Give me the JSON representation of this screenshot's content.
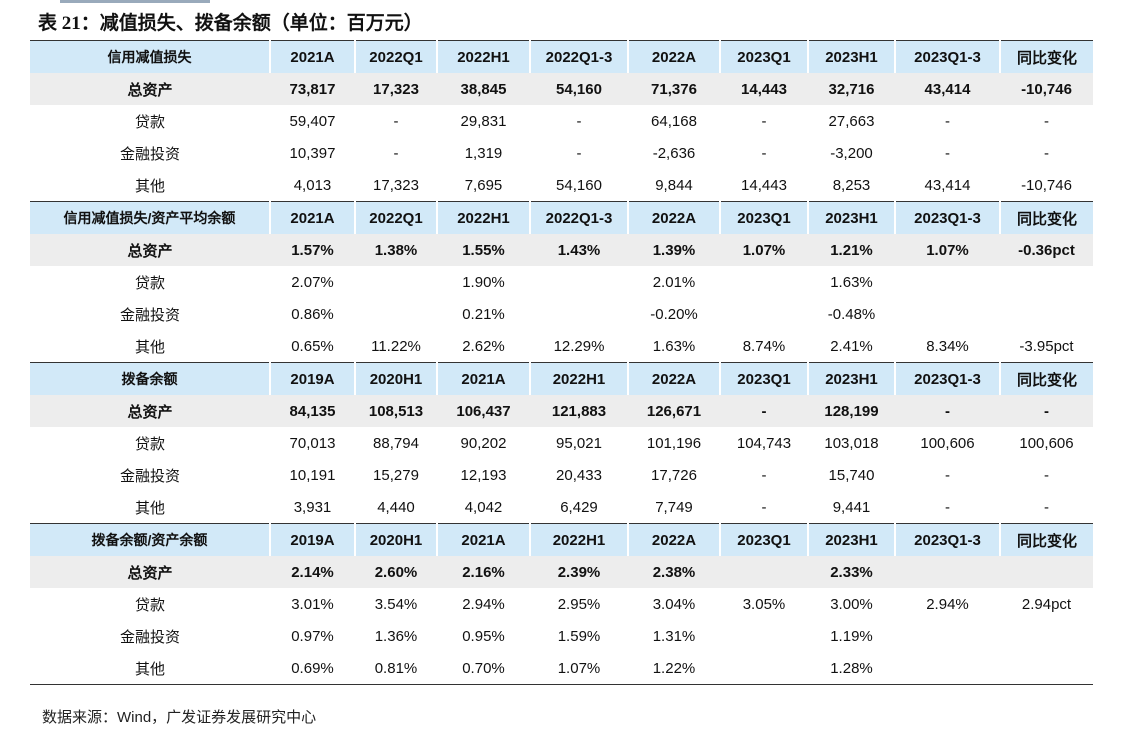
{
  "title": "表 21：减值损失、拨备余额（单位：百万元）",
  "sections": [
    {
      "header": [
        "信用减值损失",
        "2021A",
        "2022Q1",
        "2022H1",
        "2022Q1-3",
        "2022A",
        "2023Q1",
        "2023H1",
        "2023Q1-3",
        "同比变化"
      ],
      "rows": [
        [
          "总资产",
          "73,817",
          "17,323",
          "38,845",
          "54,160",
          "71,376",
          "14,443",
          "32,716",
          "43,414",
          "-10,746"
        ],
        [
          "贷款",
          "59,407",
          "-",
          "29,831",
          "-",
          "64,168",
          "-",
          "27,663",
          "-",
          "-"
        ],
        [
          "金融投资",
          "10,397",
          "-",
          "1,319",
          "-",
          "-2,636",
          "-",
          "-3,200",
          "-",
          "-"
        ],
        [
          "其他",
          "4,013",
          "17,323",
          "7,695",
          "54,160",
          "9,844",
          "14,443",
          "8,253",
          "43,414",
          "-10,746"
        ]
      ]
    },
    {
      "header": [
        "信用减值损失/资产平均余额",
        "2021A",
        "2022Q1",
        "2022H1",
        "2022Q1-3",
        "2022A",
        "2023Q1",
        "2023H1",
        "2023Q1-3",
        "同比变化"
      ],
      "rows": [
        [
          "总资产",
          "1.57%",
          "1.38%",
          "1.55%",
          "1.43%",
          "1.39%",
          "1.07%",
          "1.21%",
          "1.07%",
          "-0.36pct"
        ],
        [
          "贷款",
          "2.07%",
          null,
          "1.90%",
          null,
          "2.01%",
          null,
          "1.63%",
          null,
          null
        ],
        [
          "金融投资",
          "0.86%",
          null,
          "0.21%",
          null,
          "-0.20%",
          null,
          "-0.48%",
          null,
          null
        ],
        [
          "其他",
          "0.65%",
          "11.22%",
          "2.62%",
          "12.29%",
          "1.63%",
          "8.74%",
          "2.41%",
          "8.34%",
          "-3.95pct"
        ]
      ]
    },
    {
      "header": [
        "拨备余额",
        "2019A",
        "2020H1",
        "2021A",
        "2022H1",
        "2022A",
        "2023Q1",
        "2023H1",
        "2023Q1-3",
        "同比变化"
      ],
      "rows": [
        [
          "总资产",
          "84,135",
          "108,513",
          "106,437",
          "121,883",
          "126,671",
          "-",
          "128,199",
          "-",
          "-"
        ],
        [
          "贷款",
          "70,013",
          "88,794",
          "90,202",
          "95,021",
          "101,196",
          "104,743",
          "103,018",
          "100,606",
          "100,606"
        ],
        [
          "金融投资",
          "10,191",
          "15,279",
          "12,193",
          "20,433",
          "17,726",
          "-",
          "15,740",
          "-",
          "-"
        ],
        [
          "其他",
          "3,931",
          "4,440",
          "4,042",
          "6,429",
          "7,749",
          "-",
          "9,441",
          "-",
          "-"
        ]
      ]
    },
    {
      "header": [
        "拨备余额/资产余额",
        "2019A",
        "2020H1",
        "2021A",
        "2022H1",
        "2022A",
        "2023Q1",
        "2023H1",
        "2023Q1-3",
        "同比变化"
      ],
      "rows": [
        [
          "总资产",
          "2.14%",
          "2.60%",
          "2.16%",
          "2.39%",
          "2.38%",
          null,
          "2.33%",
          null,
          null
        ],
        [
          "贷款",
          "3.01%",
          "3.54%",
          "2.94%",
          "2.95%",
          "3.04%",
          "3.05%",
          "3.00%",
          "2.94%",
          "2.94pct"
        ],
        [
          "金融投资",
          "0.97%",
          "1.36%",
          "0.95%",
          "1.59%",
          "1.31%",
          null,
          "1.19%",
          null,
          null
        ],
        [
          "其他",
          "0.69%",
          "0.81%",
          "0.70%",
          "1.07%",
          "1.22%",
          null,
          "1.28%",
          null,
          null
        ]
      ]
    }
  ],
  "source": "数据来源：Wind，广发证券发展研究中心"
}
